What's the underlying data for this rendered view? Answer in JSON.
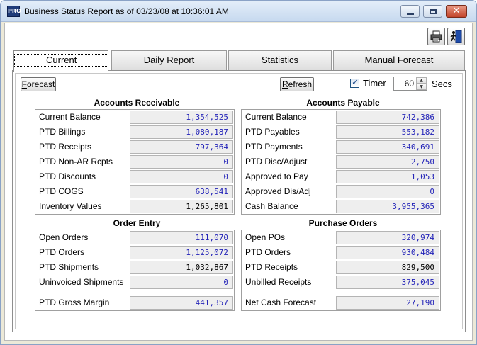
{
  "window": {
    "icon_text": "PRO",
    "title": "Business Status Report as of 03/23/08 at 10:36:01 AM",
    "min_icon": "minimize-icon",
    "max_icon": "maximize-icon",
    "close_icon": "close-icon",
    "close_glyph": "✕"
  },
  "toolbar": {
    "print_icon": "printer-icon",
    "exit_icon": "exit-door-icon"
  },
  "tabs": [
    {
      "label": "Current",
      "active": true
    },
    {
      "label": "Daily Report",
      "active": false
    },
    {
      "label": "Statistics",
      "active": false
    },
    {
      "label": "Manual Forecast",
      "active": false
    }
  ],
  "controls": {
    "forecast_underline": "F",
    "forecast_rest": "orecast",
    "refresh_underline": "R",
    "refresh_rest": "efresh",
    "timer_label": "Timer",
    "timer_checked": true,
    "timer_value": "60",
    "secs_label": "Secs",
    "spin_up": "▲",
    "spin_down": "▼",
    "tick": "✓"
  },
  "accounts_receivable": {
    "title": "Accounts Receivable",
    "rows": [
      {
        "label": "Current Balance",
        "value": "1,354,525"
      },
      {
        "label": "PTD Billings",
        "value": "1,080,187"
      },
      {
        "label": "PTD Receipts",
        "value": "797,364"
      },
      {
        "label": "PTD Non-AR Rcpts",
        "value": "0"
      },
      {
        "label": "PTD Discounts",
        "value": "0"
      },
      {
        "label": "PTD COGS",
        "value": "638,541"
      },
      {
        "label": "Inventory Values",
        "value": "1,265,801"
      }
    ]
  },
  "accounts_payable": {
    "title": "Accounts Payable",
    "rows": [
      {
        "label": "Current Balance",
        "value": "742,386"
      },
      {
        "label": "PTD Payables",
        "value": "553,182"
      },
      {
        "label": "PTD Payments",
        "value": "340,691"
      },
      {
        "label": "PTD Disc/Adjust",
        "value": "2,750"
      },
      {
        "label": "Approved to Pay",
        "value": "1,053"
      },
      {
        "label": "Approved Dis/Adj",
        "value": "0"
      },
      {
        "label": "Cash Balance",
        "value": "3,955,365"
      }
    ]
  },
  "order_entry": {
    "title": "Order Entry",
    "rows": [
      {
        "label": "Open Orders",
        "value": "111,070"
      },
      {
        "label": "PTD Orders",
        "value": "1,125,072"
      },
      {
        "label": "PTD Shipments",
        "value": "1,032,867"
      },
      {
        "label": "Uninvoiced Shipments",
        "value": "0"
      }
    ],
    "footer": {
      "label": "PTD Gross Margin",
      "value": "441,357"
    }
  },
  "purchase_orders": {
    "title": "Purchase Orders",
    "rows": [
      {
        "label": "Open POs",
        "value": "320,974"
      },
      {
        "label": "PTD Orders",
        "value": "930,484"
      },
      {
        "label": "PTD Receipts",
        "value": "829,500"
      },
      {
        "label": "Unbilled Receipts",
        "value": "375,045"
      }
    ],
    "footer": {
      "label": "Net Cash Forecast",
      "value": "27,190"
    }
  },
  "colors": {
    "value_blue": "#2323b8",
    "value_black": "#000000",
    "field_bg": "#eeeeee"
  }
}
